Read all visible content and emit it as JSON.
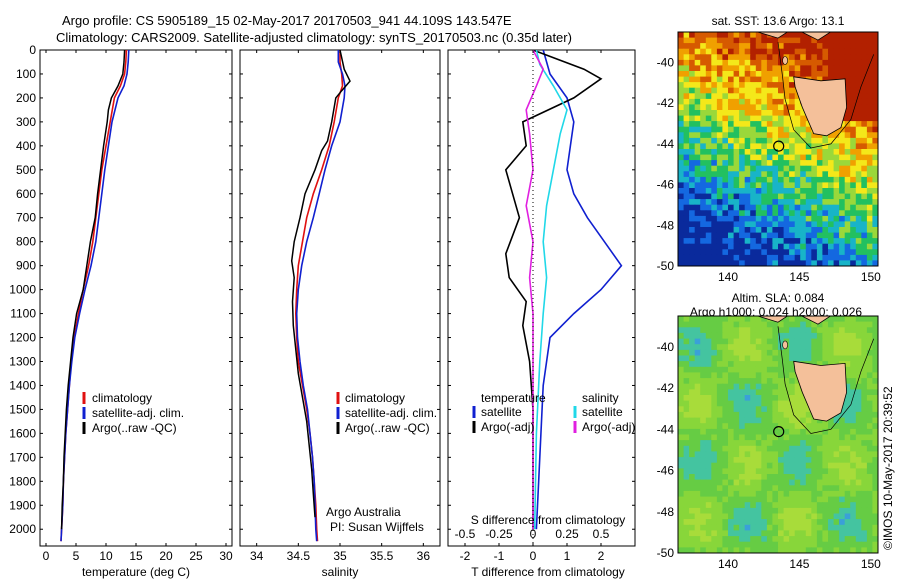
{
  "header": {
    "line1": "Argo profile: CS 5905189_15 02-May-2017 20170503_941 44.109S 143.547E",
    "line2": "Climatology: CARS2009. Satellite-adjusted climatology: synTS_20170503.nc (0.35d later)"
  },
  "credits": {
    "org": "Argo Australia",
    "pi": "PI: Susan Wijffels",
    "stamp": "©IMOS 10-May-2017 20:39:52"
  },
  "chart_data": [
    {
      "id": "temperature",
      "type": "line",
      "xlabel": "temperature (deg C)",
      "xlim": [
        -1,
        31
      ],
      "xticks": [
        0,
        5,
        10,
        15,
        20,
        25,
        30
      ],
      "ylim": [
        2070,
        0
      ],
      "yticks": [
        0,
        100,
        200,
        300,
        400,
        500,
        600,
        700,
        800,
        900,
        1000,
        1100,
        1200,
        1300,
        1400,
        1500,
        1600,
        1700,
        1800,
        1900,
        2000
      ],
      "legend": [
        "climatology",
        "satellite-adj. clim.",
        "Argo(..raw -QC)"
      ],
      "legend_placement": "lower-middle",
      "series": [
        {
          "name": "climatology",
          "color": "#e01010",
          "points": [
            [
              13.4,
              0
            ],
            [
              13.3,
              50
            ],
            [
              13.1,
              100
            ],
            [
              12.4,
              150
            ],
            [
              11.4,
              200
            ],
            [
              10.7,
              300
            ],
            [
              10.0,
              400
            ],
            [
              9.3,
              500
            ],
            [
              8.8,
              600
            ],
            [
              8.3,
              700
            ],
            [
              7.8,
              800
            ],
            [
              7.1,
              900
            ],
            [
              6.2,
              1000
            ],
            [
              5.4,
              1100
            ],
            [
              4.7,
              1200
            ],
            [
              4.2,
              1300
            ],
            [
              3.9,
              1400
            ],
            [
              3.6,
              1500
            ],
            [
              3.3,
              1600
            ],
            [
              3.1,
              1700
            ],
            [
              2.9,
              1800
            ],
            [
              2.8,
              1900
            ],
            [
              2.6,
              2000
            ],
            [
              2.5,
              2050
            ]
          ]
        },
        {
          "name": "satellite-adj. clim.",
          "color": "#1020d0",
          "points": [
            [
              13.8,
              0
            ],
            [
              13.7,
              50
            ],
            [
              13.5,
              100
            ],
            [
              13.0,
              150
            ],
            [
              12.0,
              200
            ],
            [
              11.0,
              300
            ],
            [
              10.4,
              400
            ],
            [
              9.8,
              500
            ],
            [
              9.3,
              600
            ],
            [
              8.8,
              700
            ],
            [
              8.3,
              800
            ],
            [
              7.5,
              900
            ],
            [
              6.5,
              1000
            ],
            [
              5.6,
              1100
            ],
            [
              4.8,
              1200
            ],
            [
              4.3,
              1300
            ],
            [
              3.9,
              1400
            ],
            [
              3.6,
              1500
            ],
            [
              3.3,
              1600
            ],
            [
              3.1,
              1700
            ],
            [
              2.9,
              1800
            ],
            [
              2.8,
              1900
            ],
            [
              2.6,
              2000
            ],
            [
              2.5,
              2050
            ]
          ]
        },
        {
          "name": "Argo(..raw -QC)",
          "color": "#000000",
          "points": [
            [
              13.1,
              0
            ],
            [
              13.0,
              50
            ],
            [
              12.8,
              100
            ],
            [
              12.0,
              150
            ],
            [
              10.9,
              200
            ],
            [
              10.4,
              250
            ],
            [
              10.2,
              300
            ],
            [
              9.6,
              400
            ],
            [
              9.1,
              500
            ],
            [
              8.6,
              600
            ],
            [
              8.2,
              700
            ],
            [
              7.4,
              800
            ],
            [
              6.8,
              900
            ],
            [
              6.2,
              1000
            ],
            [
              5.1,
              1100
            ],
            [
              4.5,
              1200
            ],
            [
              4.1,
              1300
            ],
            [
              3.7,
              1400
            ],
            [
              3.4,
              1500
            ],
            [
              3.2,
              1600
            ],
            [
              3.0,
              1700
            ],
            [
              2.9,
              1800
            ],
            [
              2.7,
              1900
            ],
            [
              2.6,
              2000
            ]
          ]
        }
      ]
    },
    {
      "id": "salinity",
      "type": "line",
      "xlabel": "salinity",
      "xlim": [
        33.8,
        36.2
      ],
      "xticks": [
        34,
        34.5,
        35,
        35.5,
        36
      ],
      "ylim": [
        2070,
        0
      ],
      "legend": [
        "climatology",
        "satellite-adj. clim.",
        "Argo(..raw -QC)"
      ],
      "legend_placement": "lower-right",
      "series": [
        {
          "name": "climatology",
          "color": "#e01010",
          "points": [
            [
              35.0,
              0
            ],
            [
              35.0,
              50
            ],
            [
              35.02,
              100
            ],
            [
              35.03,
              150
            ],
            [
              34.98,
              200
            ],
            [
              34.93,
              300
            ],
            [
              34.87,
              400
            ],
            [
              34.78,
              500
            ],
            [
              34.68,
              600
            ],
            [
              34.6,
              700
            ],
            [
              34.55,
              800
            ],
            [
              34.5,
              900
            ],
            [
              34.48,
              1000
            ],
            [
              34.47,
              1100
            ],
            [
              34.48,
              1200
            ],
            [
              34.5,
              1300
            ],
            [
              34.55,
              1400
            ],
            [
              34.6,
              1500
            ],
            [
              34.64,
              1600
            ],
            [
              34.67,
              1700
            ],
            [
              34.69,
              1800
            ],
            [
              34.71,
              1900
            ],
            [
              34.72,
              2000
            ],
            [
              34.73,
              2050
            ]
          ]
        },
        {
          "name": "satellite-adj. clim.",
          "color": "#1020d0",
          "points": [
            [
              34.98,
              0
            ],
            [
              34.98,
              50
            ],
            [
              35.03,
              100
            ],
            [
              35.06,
              150
            ],
            [
              35.05,
              200
            ],
            [
              35.0,
              300
            ],
            [
              34.9,
              400
            ],
            [
              34.82,
              500
            ],
            [
              34.75,
              600
            ],
            [
              34.68,
              700
            ],
            [
              34.6,
              800
            ],
            [
              34.54,
              900
            ],
            [
              34.5,
              1000
            ],
            [
              34.48,
              1100
            ],
            [
              34.49,
              1200
            ],
            [
              34.52,
              1300
            ],
            [
              34.56,
              1400
            ],
            [
              34.61,
              1500
            ],
            [
              34.64,
              1600
            ],
            [
              34.67,
              1700
            ],
            [
              34.69,
              1800
            ],
            [
              34.7,
              1900
            ],
            [
              34.71,
              2000
            ],
            [
              34.72,
              2050
            ]
          ]
        },
        {
          "name": "Argo(..raw -QC)",
          "color": "#000000",
          "points": [
            [
              35.0,
              0
            ],
            [
              35.05,
              80
            ],
            [
              35.12,
              130
            ],
            [
              35.02,
              170
            ],
            [
              34.95,
              200
            ],
            [
              34.9,
              300
            ],
            [
              34.85,
              380
            ],
            [
              34.78,
              420
            ],
            [
              34.7,
              500
            ],
            [
              34.58,
              600
            ],
            [
              34.52,
              700
            ],
            [
              34.45,
              800
            ],
            [
              34.42,
              880
            ],
            [
              34.45,
              950
            ],
            [
              34.43,
              1050
            ],
            [
              34.44,
              1150
            ],
            [
              34.47,
              1250
            ],
            [
              34.5,
              1350
            ],
            [
              34.55,
              1450
            ],
            [
              34.6,
              1550
            ],
            [
              34.63,
              1650
            ],
            [
              34.66,
              1750
            ],
            [
              34.68,
              1850
            ],
            [
              34.7,
              1950
            ]
          ]
        }
      ]
    },
    {
      "id": "difference",
      "type": "line",
      "xlabel": "T difference from climatology",
      "xlabel_top": "S difference from climatology",
      "xlim": [
        -2.5,
        3.0
      ],
      "xticks": [
        -2,
        -1,
        0,
        1,
        2
      ],
      "sticks": [
        "-0.5",
        "-0.25",
        "0",
        "0.25",
        "0.5"
      ],
      "ylim": [
        2070,
        0
      ],
      "legend_titles": [
        "temperature",
        "salinity"
      ],
      "legend": [
        "satellite",
        "Argo(-adj)",
        "satellite",
        "Argo(-adj)"
      ],
      "legend_placement": "lower-middle",
      "series": [
        {
          "name": "satellite",
          "color": "#1020d0",
          "quantity": "temperature",
          "points": [
            [
              0.3,
              0
            ],
            [
              0.4,
              50
            ],
            [
              0.5,
              100
            ],
            [
              1.0,
              200
            ],
            [
              1.2,
              300
            ],
            [
              1.1,
              400
            ],
            [
              1.0,
              500
            ],
            [
              1.2,
              600
            ],
            [
              1.6,
              700
            ],
            [
              2.1,
              800
            ],
            [
              2.6,
              900
            ],
            [
              2.0,
              1000
            ],
            [
              1.2,
              1100
            ],
            [
              0.5,
              1200
            ],
            [
              0.3,
              1400
            ],
            [
              0.2,
              1700
            ],
            [
              0.1,
              2000
            ]
          ]
        },
        {
          "name": "Argo(-adj)",
          "color": "#000000",
          "quantity": "temperature",
          "points": [
            [
              0.0,
              0
            ],
            [
              1.5,
              80
            ],
            [
              2.0,
              120
            ],
            [
              1.2,
              200
            ],
            [
              -0.3,
              300
            ],
            [
              -0.2,
              400
            ],
            [
              -0.8,
              500
            ],
            [
              -0.6,
              600
            ],
            [
              -0.4,
              700
            ],
            [
              -0.8,
              850
            ],
            [
              -0.7,
              950
            ],
            [
              -0.2,
              1050
            ],
            [
              -0.3,
              1150
            ],
            [
              -0.1,
              1300
            ],
            [
              0.0,
              1500
            ],
            [
              0.0,
              1800
            ],
            [
              0.0,
              2000
            ]
          ]
        },
        {
          "name": "satellite",
          "color": "#20d8e8",
          "quantity": "salinity",
          "points": [
            [
              0.1,
              0
            ],
            [
              0.2,
              60
            ],
            [
              0.6,
              150
            ],
            [
              1.0,
              250
            ],
            [
              0.8,
              350
            ],
            [
              0.6,
              500
            ],
            [
              0.4,
              650
            ],
            [
              0.3,
              800
            ],
            [
              0.4,
              950
            ],
            [
              0.3,
              1100
            ],
            [
              0.2,
              1300
            ],
            [
              0.1,
              1600
            ],
            [
              0.05,
              2000
            ]
          ]
        },
        {
          "name": "Argo(-adj)",
          "color": "#e020e0",
          "quantity": "salinity",
          "points": [
            [
              0.0,
              0
            ],
            [
              0.3,
              80
            ],
            [
              0.1,
              150
            ],
            [
              -0.2,
              250
            ],
            [
              -0.1,
              350
            ],
            [
              0.0,
              500
            ],
            [
              -0.2,
              650
            ],
            [
              0.0,
              800
            ],
            [
              -0.1,
              950
            ],
            [
              0.0,
              1100
            ],
            [
              0.0,
              1400
            ],
            [
              0.0,
              1800
            ],
            [
              0.0,
              2000
            ]
          ]
        }
      ]
    },
    {
      "id": "sst-map",
      "type": "heatmap",
      "title": "sat. SST: 13.6  Argo: 13.1",
      "xticks": [
        140,
        145,
        150
      ],
      "yticks": [
        -40,
        -42,
        -44,
        -46,
        -48,
        -50
      ],
      "xlim": [
        136.5,
        150.5
      ],
      "ylim": [
        -50,
        -38.5
      ],
      "argo_position": [
        143.547,
        -44.109
      ]
    },
    {
      "id": "sla-map",
      "type": "heatmap",
      "title": "Altim. SLA: 0.084",
      "subtitle": "Argo h1000: 0.024 h2000: 0.026",
      "xticks": [
        140,
        145,
        150
      ],
      "yticks": [
        -40,
        -42,
        -44,
        -46,
        -48,
        -50
      ],
      "xlim": [
        136.5,
        150.5
      ],
      "ylim": [
        -50,
        -38.5
      ],
      "argo_position": [
        143.547,
        -44.109
      ]
    }
  ]
}
